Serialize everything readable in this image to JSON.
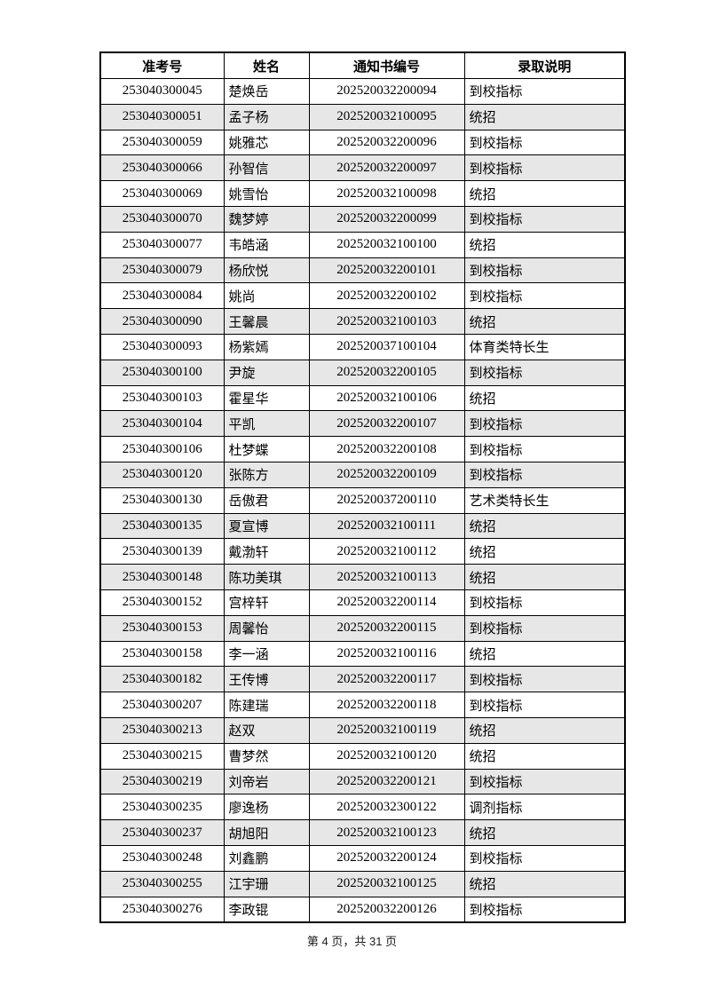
{
  "table": {
    "headers": [
      "准考号",
      "姓名",
      "通知书编号",
      "录取说明"
    ],
    "rows": [
      [
        "253040300045",
        "楚焕岳",
        "202520032200094",
        "到校指标"
      ],
      [
        "253040300051",
        "孟子杨",
        "202520032100095",
        "统招"
      ],
      [
        "253040300059",
        "姚雅芯",
        "202520032200096",
        "到校指标"
      ],
      [
        "253040300066",
        "孙智信",
        "202520032200097",
        "到校指标"
      ],
      [
        "253040300069",
        "姚雪怡",
        "202520032100098",
        "统招"
      ],
      [
        "253040300070",
        "魏梦婷",
        "202520032200099",
        "到校指标"
      ],
      [
        "253040300077",
        "韦皓涵",
        "202520032100100",
        "统招"
      ],
      [
        "253040300079",
        "杨欣悦",
        "202520032200101",
        "到校指标"
      ],
      [
        "253040300084",
        "姚尚",
        "202520032200102",
        "到校指标"
      ],
      [
        "253040300090",
        "王馨晨",
        "202520032100103",
        "统招"
      ],
      [
        "253040300093",
        "杨紫嫣",
        "202520037100104",
        "体育类特长生"
      ],
      [
        "253040300100",
        "尹旋",
        "202520032200105",
        "到校指标"
      ],
      [
        "253040300103",
        "霍星华",
        "202520032100106",
        "统招"
      ],
      [
        "253040300104",
        "平凯",
        "202520032200107",
        "到校指标"
      ],
      [
        "253040300106",
        "杜梦蝶",
        "202520032200108",
        "到校指标"
      ],
      [
        "253040300120",
        "张陈方",
        "202520032200109",
        "到校指标"
      ],
      [
        "253040300130",
        "岳傲君",
        "202520037200110",
        "艺术类特长生"
      ],
      [
        "253040300135",
        "夏宣博",
        "202520032100111",
        "统招"
      ],
      [
        "253040300139",
        "戴渤轩",
        "202520032100112",
        "统招"
      ],
      [
        "253040300148",
        "陈功美琪",
        "202520032100113",
        "统招"
      ],
      [
        "253040300152",
        "宫梓轩",
        "202520032200114",
        "到校指标"
      ],
      [
        "253040300153",
        "周馨怡",
        "202520032200115",
        "到校指标"
      ],
      [
        "253040300158",
        "李一涵",
        "202520032100116",
        "统招"
      ],
      [
        "253040300182",
        "王传博",
        "202520032200117",
        "到校指标"
      ],
      [
        "253040300207",
        "陈建瑞",
        "202520032200118",
        "到校指标"
      ],
      [
        "253040300213",
        "赵双",
        "202520032100119",
        "统招"
      ],
      [
        "253040300215",
        "曹梦然",
        "202520032100120",
        "统招"
      ],
      [
        "253040300219",
        "刘帝岩",
        "202520032200121",
        "到校指标"
      ],
      [
        "253040300235",
        "廖逸杨",
        "202520032300122",
        "调剂指标"
      ],
      [
        "253040300237",
        "胡旭阳",
        "202520032100123",
        "统招"
      ],
      [
        "253040300248",
        "刘鑫鹏",
        "202520032200124",
        "到校指标"
      ],
      [
        "253040300255",
        "江宇珊",
        "202520032100125",
        "统招"
      ],
      [
        "253040300276",
        "李政锟",
        "202520032200126",
        "到校指标"
      ]
    ]
  },
  "footer": {
    "text": "第 4 页，共 31 页"
  },
  "colors": {
    "stripe": "#e7e7e7",
    "border": "#000000",
    "background": "#ffffff"
  }
}
